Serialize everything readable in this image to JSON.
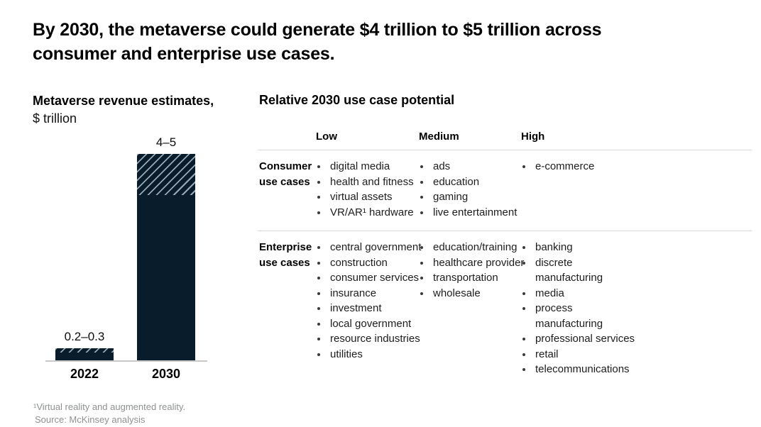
{
  "page": {
    "title": "By 2030, the metaverse could generate $4 trillion to $5 trillion across\nconsumer and enterprise use cases."
  },
  "chart": {
    "heading": "Metaverse revenue estimates,",
    "unit_label": "$ trillion"
  },
  "chart_data": {
    "type": "bar",
    "title": "Metaverse revenue estimates, $ trillion",
    "categories": [
      "2022",
      "2030"
    ],
    "series": [
      {
        "name": "lower estimate (solid portion)",
        "values": [
          0.2,
          4
        ]
      },
      {
        "name": "upper estimate (hatched top portion)",
        "values": [
          0.3,
          5
        ]
      }
    ],
    "bar_labels": [
      "0.2–0.3",
      "4–5"
    ],
    "xlabel": "",
    "ylabel": "$ trillion",
    "ylim": [
      0,
      5
    ],
    "grid": false,
    "legend": "none",
    "bar_color": "#081c2b",
    "hatch_note": "range between low and high estimate shown as diagonal hatching at top of each bar"
  },
  "table": {
    "heading": "Relative 2030 use case potential",
    "columns": [
      "Low",
      "Medium",
      "High"
    ],
    "rows": [
      {
        "label": "Consumer use cases",
        "low": [
          "digital media",
          "health and fitness",
          "virtual assets",
          "VR/AR¹ hardware"
        ],
        "medium": [
          "ads",
          "education",
          "gaming",
          "live entertainment"
        ],
        "high": [
          "e-commerce"
        ]
      },
      {
        "label": "Enterprise use cases",
        "low": [
          "central government",
          "construction",
          "consumer services",
          "insurance",
          "investment",
          "local government",
          "resource industries",
          "utilities"
        ],
        "medium": [
          "education/training",
          "healthcare provider",
          "transportation",
          "wholesale"
        ],
        "high": [
          "banking",
          "discrete\nmanufacturing",
          "media",
          "process\nmanufacturing",
          "professional services",
          "retail",
          "telecommunications"
        ]
      }
    ]
  },
  "footnotes": [
    "¹Virtual reality and augmented reality.",
    "Source: McKinsey analysis"
  ],
  "colors": {
    "bar_navy": "#081c2b",
    "hatch_stripe": "#aebfca",
    "rule_gray": "#d9d9d9",
    "axis_gray": "#c9c9c9",
    "footnote_gray": "#8e9192",
    "text_black": "#000000"
  }
}
